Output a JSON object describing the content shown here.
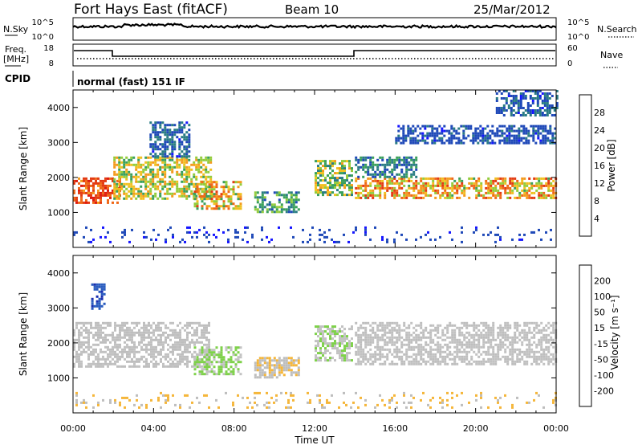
{
  "header": {
    "station": "Fort Hays East (fitACF)",
    "beam": "Beam 10",
    "date": "25/Mar/2012"
  },
  "tracks": {
    "nsky": {
      "label": "N.Sky",
      "ticks": [
        "10^5",
        "10^0"
      ]
    },
    "nsearch": {
      "label": "N.Search",
      "ticks": [
        "10^5",
        "10^0"
      ]
    },
    "freq": {
      "label_1": "Freq.",
      "label_2": "[MHz]",
      "ticks": [
        "18",
        "8"
      ]
    },
    "nave": {
      "label": "Nave",
      "ticks": [
        "60",
        "0"
      ]
    },
    "cpid": {
      "label": "CPID",
      "value": "normal (fast) 151 IF"
    }
  },
  "colors": {
    "power": [
      "#1515ff",
      "#1f49b8",
      "#2a7c84",
      "#3aa05c",
      "#93cc3c",
      "#f0c020",
      "#f39b1d",
      "#ef6818",
      "#e33b12",
      "#df1a10"
    ],
    "velocity": [
      "#ff1111",
      "#ff5a18",
      "#ff8f24",
      "#f5b63a",
      "#bebebe",
      "#c2c2c2",
      "#7ed14a",
      "#3ea83e",
      "#2a5cbf",
      "#1a2eb0"
    ]
  },
  "chart_data": [
    {
      "panel": "power",
      "type": "heatmap",
      "xlabel": "",
      "ylabel": "Slant Range [km]",
      "x_range": [
        "00:00",
        "00:00"
      ],
      "y_ticks": [
        "4000",
        "3000",
        "2000",
        "1000"
      ],
      "colorbar": {
        "label": "Power [dB]",
        "ticks": [
          "28",
          "24",
          "20",
          "16",
          "12",
          "8",
          "4"
        ],
        "range": [
          0,
          32
        ]
      },
      "regions": [
        {
          "t": [
            0.0,
            2.3
          ],
          "r": [
            1300,
            2000
          ],
          "v": 26,
          "spread": 4
        },
        {
          "t": [
            2.0,
            6.8
          ],
          "r": [
            1400,
            2600
          ],
          "v": 16,
          "spread": 6
        },
        {
          "t": [
            3.8,
            5.8
          ],
          "r": [
            2600,
            3600
          ],
          "v": 6,
          "spread": 3
        },
        {
          "t": [
            6.0,
            8.3
          ],
          "r": [
            1100,
            1900
          ],
          "v": 18,
          "spread": 8
        },
        {
          "t": [
            9.0,
            11.2
          ],
          "r": [
            1000,
            1600
          ],
          "v": 10,
          "spread": 5
        },
        {
          "t": [
            12.0,
            13.9
          ],
          "r": [
            1500,
            2500
          ],
          "v": 14,
          "spread": 6
        },
        {
          "t": [
            14.0,
            24.0
          ],
          "r": [
            1400,
            2000
          ],
          "v": 20,
          "spread": 8
        },
        {
          "t": [
            14.0,
            17.0
          ],
          "r": [
            2000,
            2600
          ],
          "v": 8,
          "spread": 4
        },
        {
          "t": [
            16.0,
            24.0
          ],
          "r": [
            3000,
            3500
          ],
          "v": 5,
          "spread": 2
        },
        {
          "t": [
            21.0,
            24.0
          ],
          "r": [
            3800,
            4500
          ],
          "v": 6,
          "spread": 3
        },
        {
          "t": [
            0.0,
            24.0
          ],
          "r": [
            180,
            600
          ],
          "v": 4,
          "spread": 2
        }
      ]
    },
    {
      "panel": "velocity",
      "type": "heatmap",
      "xlabel": "Time UT",
      "ylabel": "Slant Range [km]",
      "x_ticks": [
        "00:00",
        "04:00",
        "08:00",
        "12:00",
        "16:00",
        "20:00",
        "00:00"
      ],
      "y_ticks": [
        "4000",
        "3000",
        "2000",
        "1000"
      ],
      "colorbar": {
        "label": "Velocity [m s⁻¹]",
        "ticks": [
          "200",
          "100",
          "50",
          "15",
          "-15",
          "-50",
          "-100",
          "-200"
        ],
        "range": [
          -250,
          250
        ]
      },
      "regions": [
        {
          "t": [
            0.0,
            6.8
          ],
          "r": [
            1300,
            2600
          ],
          "v": 0,
          "spread": 10
        },
        {
          "t": [
            6.0,
            8.3
          ],
          "r": [
            1100,
            1900
          ],
          "v": 55,
          "spread": 20
        },
        {
          "t": [
            9.0,
            11.2
          ],
          "r": [
            1000,
            1600
          ],
          "v": -40,
          "spread": 30
        },
        {
          "t": [
            12.0,
            13.9
          ],
          "r": [
            1500,
            2500
          ],
          "v": 40,
          "spread": 30
        },
        {
          "t": [
            14.0,
            24.0
          ],
          "r": [
            1400,
            2600
          ],
          "v": 0,
          "spread": 10
        },
        {
          "t": [
            0.9,
            1.6
          ],
          "r": [
            3000,
            3700
          ],
          "v": 180,
          "spread": 30
        },
        {
          "t": [
            0.0,
            24.0
          ],
          "r": [
            180,
            600
          ],
          "v": -60,
          "spread": 40
        }
      ]
    }
  ]
}
